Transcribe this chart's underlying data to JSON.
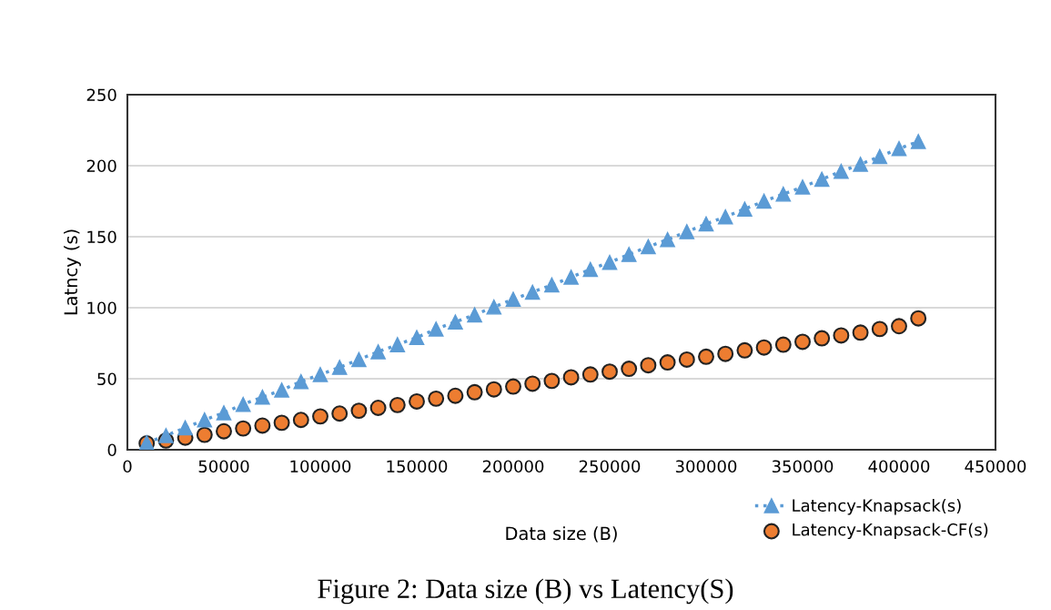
{
  "chart_data": {
    "type": "scatter",
    "xlabel": "Data size (B)",
    "ylabel": "Latncy (s)",
    "x": [
      10000,
      20000,
      30000,
      40000,
      50000,
      60000,
      70000,
      80000,
      90000,
      100000,
      110000,
      120000,
      130000,
      140000,
      150000,
      160000,
      170000,
      180000,
      190000,
      200000,
      210000,
      220000,
      230000,
      240000,
      250000,
      260000,
      270000,
      280000,
      290000,
      300000,
      310000,
      320000,
      330000,
      340000,
      350000,
      360000,
      370000,
      380000,
      390000,
      400000,
      410000
    ],
    "series": [
      {
        "name": "Latency-Knapsack(s)",
        "color": "#5b9bd5",
        "type": "line",
        "marker": "triangle",
        "line_style": "dotted",
        "values": [
          5,
          10,
          15.5,
          21,
          26,
          32,
          37,
          42,
          48,
          53,
          58,
          63.5,
          69,
          74,
          79,
          85,
          90,
          95,
          100.5,
          106,
          111,
          116,
          121.5,
          127,
          132,
          137.5,
          143,
          148,
          153.5,
          159,
          164,
          169.5,
          175,
          180,
          185,
          190.5,
          196,
          201,
          206.5,
          212,
          217
        ]
      },
      {
        "name": "Latency-Knapsack-CF(s)",
        "color": "#ed7d31",
        "marker": "circle",
        "values": [
          4.5,
          6.5,
          8.5,
          10.5,
          13,
          15,
          17,
          19,
          21,
          23.5,
          25.5,
          27.5,
          29.5,
          31.5,
          34,
          36,
          38,
          40.5,
          42.5,
          44.5,
          46.5,
          48.5,
          51,
          53,
          55,
          57,
          59.5,
          61.5,
          63.5,
          65.5,
          67.5,
          70,
          72,
          74,
          76,
          78.5,
          80.5,
          82.5,
          85,
          87,
          92.5
        ]
      }
    ],
    "xlim": [
      0,
      450000
    ],
    "xticks": [
      0,
      50000,
      100000,
      150000,
      200000,
      250000,
      300000,
      350000,
      400000,
      450000
    ],
    "ylim": [
      0,
      250
    ],
    "yticks": [
      0,
      50,
      100,
      150,
      200,
      250
    ],
    "grid": "y",
    "legend": "bottom right",
    "annotations": [
      "Figure 2: Data size (B) vs Latency(S)"
    ]
  }
}
